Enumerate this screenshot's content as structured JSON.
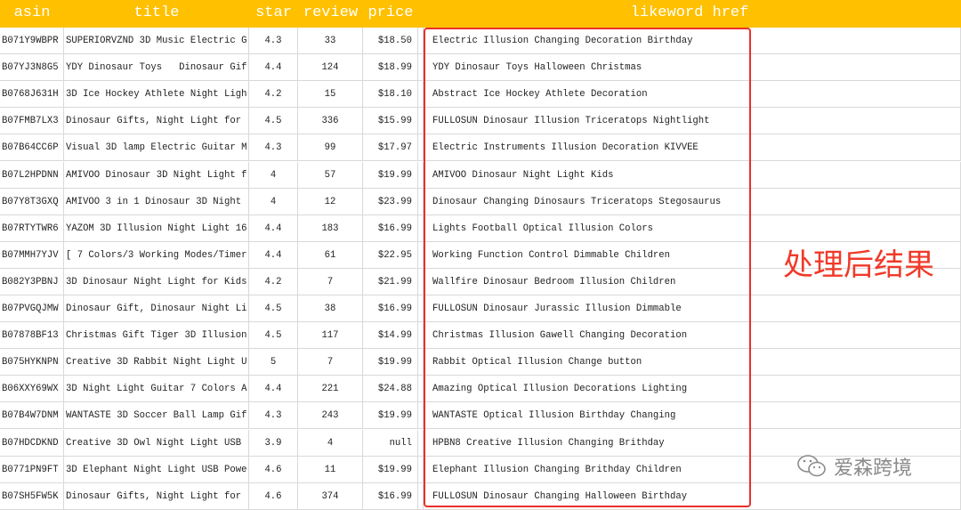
{
  "table": {
    "columns": [
      "asin",
      "title",
      "star",
      "review",
      "price",
      "likeword href"
    ],
    "rows": [
      [
        "B071Y9WBPR",
        "SUPERIORVZND 3D Music Electric G",
        4.3,
        33,
        "$18.50",
        "Electric Illusion Changing Decoration Birthday"
      ],
      [
        "B07YJ3N8G5",
        "YDY Dinosaur Toys   Dinosaur Gif",
        4.4,
        124,
        "$18.99",
        "YDY Dinosaur Toys Halloween Christmas"
      ],
      [
        "B0768J631H",
        "3D Ice Hockey Athlete Night Ligh",
        4.2,
        15,
        "$18.10",
        "Abstract Ice Hockey Athlete Decoration"
      ],
      [
        "B07FMB7LX3",
        "Dinosaur Gifts, Night Light for",
        4.5,
        336,
        "$15.99",
        "FULLOSUN Dinosaur Illusion Triceratops Nightlight"
      ],
      [
        "B07B64CC6P",
        "Visual 3D lamp Electric Guitar M",
        4.3,
        99,
        "$17.97",
        "Electric Instruments Illusion Decoration KIVVEE"
      ],
      [
        "B07L2HPDNN",
        "AMIVOO Dinosaur 3D Night Light f",
        4,
        57,
        "$19.99",
        "AMIVOO Dinosaur Night Light Kids"
      ],
      [
        "B07Y8T3GXQ",
        "AMIVOO 3 in 1 Dinosaur 3D Night",
        4,
        12,
        "$23.99",
        "Dinosaur Changing Dinosaurs Triceratops Stegosaurus"
      ],
      [
        "B07RTYTWR6",
        "YAZOM 3D Illusion Night Light 16",
        4.4,
        183,
        "$16.99",
        "Lights Football Optical Illusion Colors"
      ],
      [
        "B07MMH7YJV",
        "[ 7 Colors/3 Working Modes/Timer",
        4.4,
        61,
        "$22.95",
        "Working Function Control Dimmable Children"
      ],
      [
        "B082Y3PBNJ",
        "3D Dinosaur Night Light for Kids",
        4.2,
        7,
        "$21.99",
        "Wallfire Dinosaur Bedroom Illusion Children"
      ],
      [
        "B07PVGQJMW",
        "Dinosaur Gift, Dinosaur Night Li",
        4.5,
        38,
        "$16.99",
        "FULLOSUN Dinosaur Jurassic Illusion Dimmable"
      ],
      [
        "B07878BF13",
        "Christmas Gift Tiger 3D Illusion",
        4.5,
        117,
        "$14.99",
        "Christmas Illusion Gawell Changing Decoration"
      ],
      [
        "B075HYKNPN",
        "Creative 3D Rabbit Night Light U",
        5,
        7,
        "$19.99",
        "Rabbit Optical Illusion Change button"
      ],
      [
        "B06XXY69WX",
        "3D Night Light Guitar 7 Colors A",
        4.4,
        221,
        "$24.88",
        "Amazing Optical Illusion Decorations Lighting"
      ],
      [
        "B07B4W7DNM",
        "WANTASTE 3D Soccer Ball Lamp Gif",
        4.3,
        243,
        "$19.99",
        "WANTASTE Optical Illusion Birthday Changing"
      ],
      [
        "B07HDCDKND",
        "Creative 3D Owl Night Light USB",
        3.9,
        4,
        "null",
        "HPBN8 Creative Illusion Changing Brithday"
      ],
      [
        "B0771PN9FT",
        "3D Elephant Night Light USB Powe",
        4.6,
        11,
        "$19.99",
        "Elephant Illusion Changing Brithday Children"
      ],
      [
        "B07SH5FW5K",
        "Dinosaur Gifts, Night Light for",
        4.6,
        374,
        "$16.99",
        "FULLOSUN Dinosaur Changing Halloween Birthday"
      ]
    ]
  },
  "annotation": "处理后结果",
  "watermark": "爱森跨境"
}
